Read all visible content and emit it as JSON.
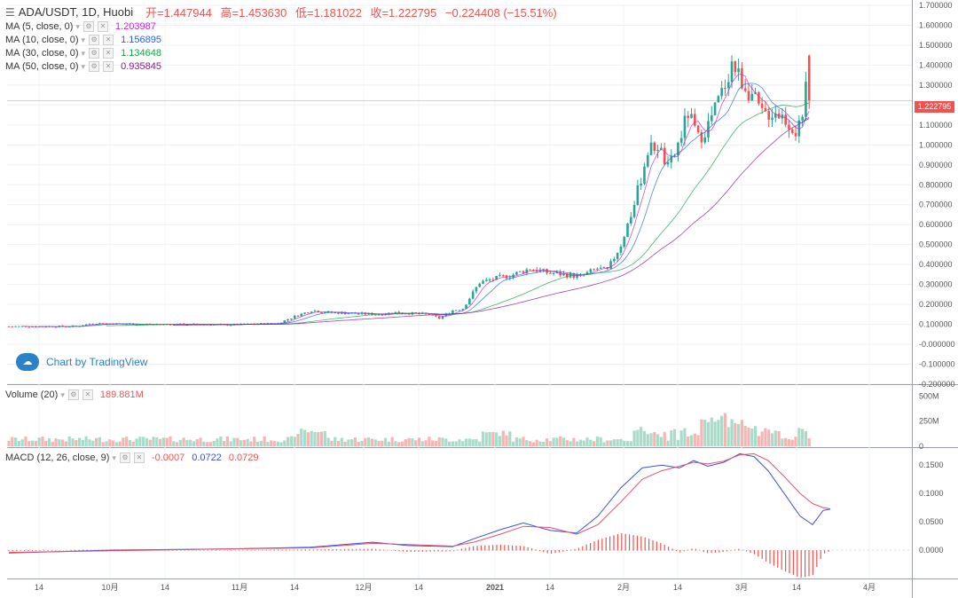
{
  "header": {
    "menu_icon": "hamburger-icon",
    "symbol": "ADA/USDT, 1D, Huobi",
    "open": "开=1.447944",
    "high": "高=1.453630",
    "low": "低=1.181022",
    "close": "收=1.222795",
    "change": "−0.224408 (−15.51%)"
  },
  "indicators": [
    {
      "label": "MA (5, close, 0)",
      "value": "1.203987",
      "color": "#c026d3"
    },
    {
      "label": "MA (10, close, 0)",
      "value": "1.156895",
      "color": "#2563eb"
    },
    {
      "label": "MA (30, close, 0)",
      "value": "1.134648",
      "color": "#16a34a"
    },
    {
      "label": "MA (50, close, 0)",
      "value": "0.935845",
      "color": "#86198f"
    }
  ],
  "volume_legend": {
    "label": "Volume (20)",
    "value": "189.881M",
    "color": "#ef5350"
  },
  "macd_legend": {
    "label": "MACD (12, 26, close, 9)",
    "hist": "-0.0007",
    "macd": "0.0722",
    "signal": "0.0729"
  },
  "watermark": {
    "text": "Chart by TradingView",
    "icon": "tradingview-cloud-icon"
  },
  "last_price_tag": "1.222795",
  "colors": {
    "up": "#26a69a",
    "down": "#ef5350",
    "upVol": "#a7dcc9",
    "downVol": "#f5b5b3",
    "grid": "#eef0f3",
    "axis": "#555555",
    "macd": "#3f51d5",
    "signal": "#e05370"
  },
  "chart_data": [
    {
      "type": "candlestick",
      "title": "ADA/USDT, 1D, Huobi",
      "ylim": [
        -0.2,
        1.7
      ],
      "yticks": [
        "1.700000",
        "1.600000",
        "1.500000",
        "1.400000",
        "1.300000",
        "1.200000",
        "1.100000",
        "1.000000",
        "0.900000",
        "0.800000",
        "0.700000",
        "0.600000",
        "0.500000",
        "0.400000",
        "0.300000",
        "0.200000",
        "0.100000",
        "-0.000000",
        "-0.100000",
        "-0.200000"
      ],
      "xticks": [
        "14",
        "10月",
        "14",
        "11月",
        "14",
        "12月",
        "14",
        "2021",
        "14",
        "2月",
        "14",
        "3月",
        "14",
        "4月"
      ],
      "key_points": {
        "start": 0.09,
        "oct": 0.1,
        "nov": 0.1,
        "dec": 0.16,
        "jan": 0.18,
        "mid_jan": 0.36,
        "feb": 0.38,
        "peak": 1.48,
        "last_open": 1.447944,
        "last_high": 1.45363,
        "last_low": 1.181022,
        "last_close": 1.222795
      },
      "series": [
        {
          "name": "MA (5, close, 0)",
          "last": 1.203987
        },
        {
          "name": "MA (10, close, 0)",
          "last": 1.156895
        },
        {
          "name": "MA (30, close, 0)",
          "last": 1.134648
        },
        {
          "name": "MA (50, close, 0)",
          "last": 0.935845
        }
      ]
    },
    {
      "type": "bar",
      "title": "Volume (20)",
      "ylim": [
        0,
        600
      ],
      "yticks": [
        "500M",
        "250M",
        "0"
      ],
      "last_value_M": 189.881
    },
    {
      "type": "line",
      "title": "MACD (12, 26, close, 9)",
      "ylim": [
        -0.05,
        0.18
      ],
      "yticks": [
        "0.1500",
        "0.1000",
        "0.0500",
        "0.0000"
      ],
      "series": [
        {
          "name": "MACD",
          "last": 0.0722
        },
        {
          "name": "Signal",
          "last": 0.0729
        },
        {
          "name": "Histogram",
          "last": -0.0007
        }
      ],
      "macd_points": [
        [
          0,
          -0.005
        ],
        [
          60,
          0.0
        ],
        [
          120,
          0.002
        ],
        [
          170,
          0.005
        ],
        [
          205,
          0.014
        ],
        [
          225,
          0.008
        ],
        [
          250,
          0.006
        ],
        [
          262,
          0.02
        ],
        [
          277,
          0.036
        ],
        [
          290,
          0.048
        ],
        [
          305,
          0.035
        ],
        [
          320,
          0.03
        ],
        [
          332,
          0.06
        ],
        [
          345,
          0.11
        ],
        [
          357,
          0.145
        ],
        [
          368,
          0.15
        ],
        [
          378,
          0.145
        ],
        [
          386,
          0.158
        ],
        [
          394,
          0.148
        ],
        [
          403,
          0.155
        ],
        [
          412,
          0.17
        ],
        [
          420,
          0.165
        ],
        [
          428,
          0.14
        ],
        [
          437,
          0.1
        ],
        [
          446,
          0.06
        ],
        [
          453,
          0.045
        ],
        [
          459,
          0.07
        ],
        [
          463,
          0.0722
        ]
      ],
      "signal_points": [
        [
          0,
          -0.004
        ],
        [
          60,
          -0.001
        ],
        [
          120,
          0.002
        ],
        [
          170,
          0.004
        ],
        [
          205,
          0.012
        ],
        [
          225,
          0.01
        ],
        [
          250,
          0.007
        ],
        [
          262,
          0.014
        ],
        [
          277,
          0.028
        ],
        [
          290,
          0.042
        ],
        [
          305,
          0.04
        ],
        [
          320,
          0.028
        ],
        [
          332,
          0.045
        ],
        [
          345,
          0.085
        ],
        [
          357,
          0.125
        ],
        [
          368,
          0.14
        ],
        [
          378,
          0.148
        ],
        [
          386,
          0.155
        ],
        [
          394,
          0.152
        ],
        [
          403,
          0.157
        ],
        [
          412,
          0.168
        ],
        [
          420,
          0.17
        ],
        [
          428,
          0.158
        ],
        [
          437,
          0.13
        ],
        [
          446,
          0.1
        ],
        [
          453,
          0.082
        ],
        [
          459,
          0.075
        ],
        [
          463,
          0.0729
        ]
      ]
    }
  ]
}
